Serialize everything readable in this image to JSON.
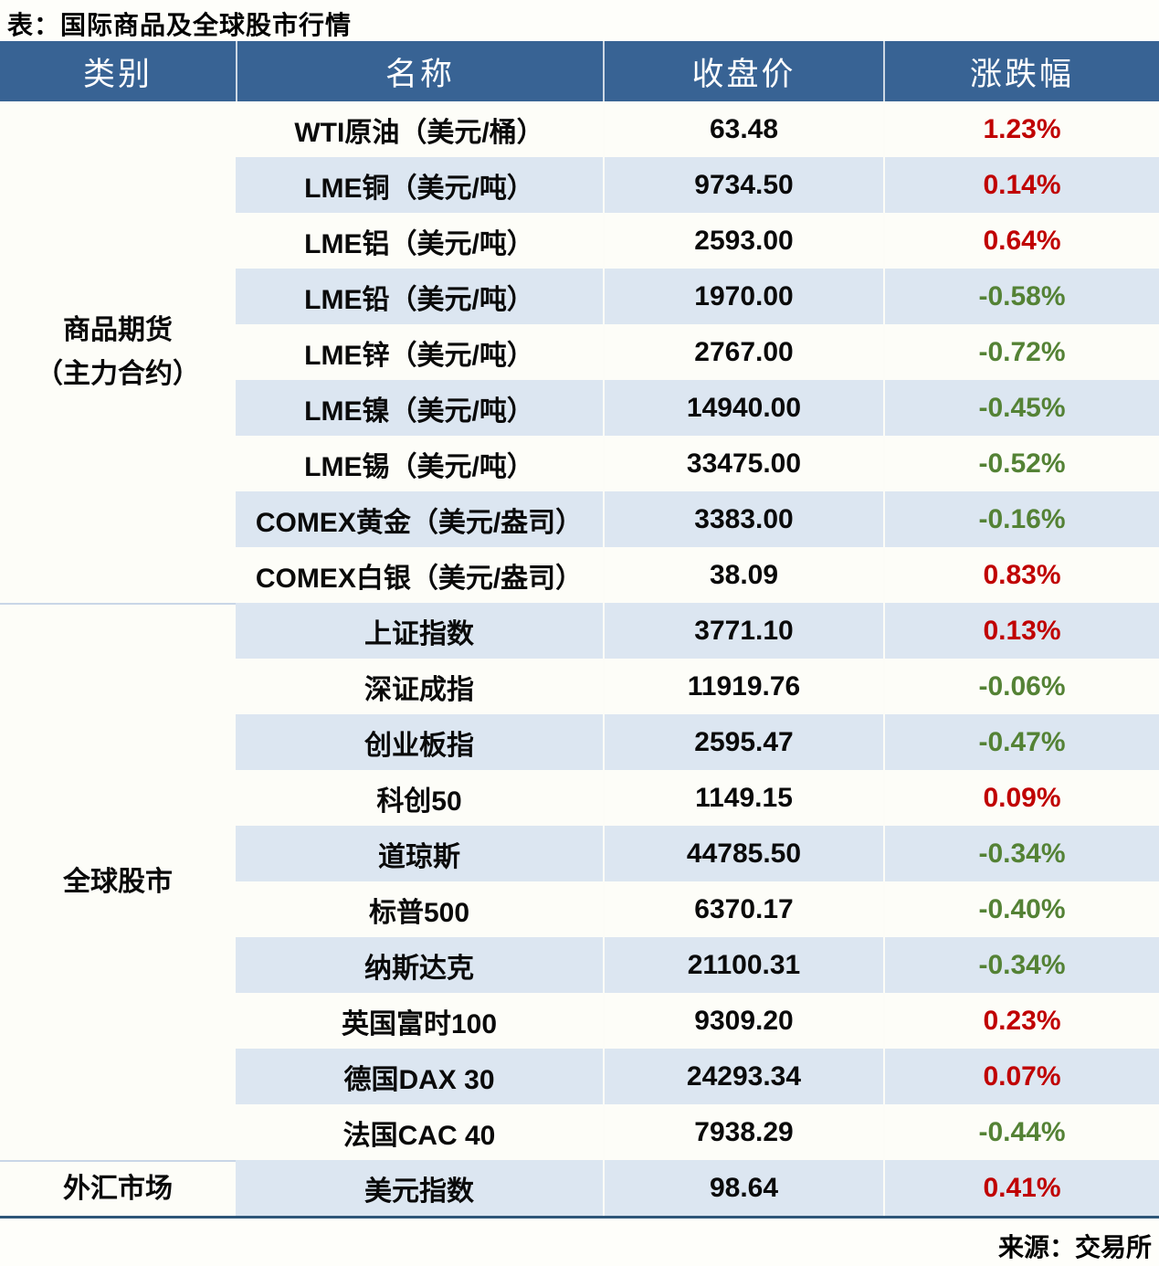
{
  "title": "表：国际商品及全球股市行情",
  "source": "来源：交易所",
  "colors": {
    "header_bg": "#386394",
    "stripe_blue": "#dce6f1",
    "row_white": "#fdfdf8",
    "up_red": "#c00000",
    "down_green": "#548235",
    "bottom_border": "#2e5679"
  },
  "table": {
    "columns": [
      "类别",
      "名称",
      "收盘价",
      "涨跌幅"
    ],
    "categories": [
      {
        "label_line1": "商品期货",
        "label_line2": "（主力合约）",
        "row_count": 9
      },
      {
        "label_line1": "全球股市",
        "label_line2": "",
        "row_count": 10
      },
      {
        "label_line1": "外汇市场",
        "label_line2": "",
        "row_count": 1
      }
    ],
    "rows": [
      {
        "name": "WTI原油（美元/桶）",
        "close": "63.48",
        "change": "1.23%"
      },
      {
        "name": "LME铜（美元/吨）",
        "close": "9734.50",
        "change": "0.14%"
      },
      {
        "name": "LME铝（美元/吨）",
        "close": "2593.00",
        "change": "0.64%"
      },
      {
        "name": "LME铅（美元/吨）",
        "close": "1970.00",
        "change": "-0.58%"
      },
      {
        "name": "LME锌（美元/吨）",
        "close": "2767.00",
        "change": "-0.72%"
      },
      {
        "name": "LME镍（美元/吨）",
        "close": "14940.00",
        "change": "-0.45%"
      },
      {
        "name": "LME锡（美元/吨）",
        "close": "33475.00",
        "change": "-0.52%"
      },
      {
        "name": "COMEX黄金（美元/盎司）",
        "close": "3383.00",
        "change": "-0.16%"
      },
      {
        "name": "COMEX白银（美元/盎司）",
        "close": "38.09",
        "change": "0.83%"
      },
      {
        "name": "上证指数",
        "close": "3771.10",
        "change": "0.13%"
      },
      {
        "name": "深证成指",
        "close": "11919.76",
        "change": "-0.06%"
      },
      {
        "name": "创业板指",
        "close": "2595.47",
        "change": "-0.47%"
      },
      {
        "name": "科创50",
        "close": "1149.15",
        "change": "0.09%"
      },
      {
        "name": "道琼斯",
        "close": "44785.50",
        "change": "-0.34%"
      },
      {
        "name": "标普500",
        "close": "6370.17",
        "change": "-0.40%"
      },
      {
        "name": "纳斯达克",
        "close": "21100.31",
        "change": "-0.34%"
      },
      {
        "name": "英国富时100",
        "close": "9309.20",
        "change": "0.23%"
      },
      {
        "name": "德国DAX 30",
        "close": "24293.34",
        "change": "0.07%"
      },
      {
        "name": "法国CAC 40",
        "close": "7938.29",
        "change": "-0.44%"
      },
      {
        "name": "美元指数",
        "close": "98.64",
        "change": "0.41%"
      }
    ]
  },
  "chart_data": {
    "type": "table",
    "title": "表：国际商品及全球股市行情",
    "columns": [
      "类别",
      "名称",
      "收盘价",
      "涨跌幅"
    ],
    "rows": [
      [
        "商品期货（主力合约）",
        "WTI原油（美元/桶）",
        63.48,
        "1.23%"
      ],
      [
        "商品期货（主力合约）",
        "LME铜（美元/吨）",
        9734.5,
        "0.14%"
      ],
      [
        "商品期货（主力合约）",
        "LME铝（美元/吨）",
        2593.0,
        "0.64%"
      ],
      [
        "商品期货（主力合约）",
        "LME铅（美元/吨）",
        1970.0,
        "-0.58%"
      ],
      [
        "商品期货（主力合约）",
        "LME锌（美元/吨）",
        2767.0,
        "-0.72%"
      ],
      [
        "商品期货（主力合约）",
        "LME镍（美元/吨）",
        14940.0,
        "-0.45%"
      ],
      [
        "商品期货（主力合约）",
        "LME锡（美元/吨）",
        33475.0,
        "-0.52%"
      ],
      [
        "商品期货（主力合约）",
        "COMEX黄金（美元/盎司）",
        3383.0,
        "-0.16%"
      ],
      [
        "商品期货（主力合约）",
        "COMEX白银（美元/盎司）",
        38.09,
        "0.83%"
      ],
      [
        "全球股市",
        "上证指数",
        3771.1,
        "0.13%"
      ],
      [
        "全球股市",
        "深证成指",
        11919.76,
        "-0.06%"
      ],
      [
        "全球股市",
        "创业板指",
        2595.47,
        "-0.47%"
      ],
      [
        "全球股市",
        "科创50",
        1149.15,
        "0.09%"
      ],
      [
        "全球股市",
        "道琼斯",
        44785.5,
        "-0.34%"
      ],
      [
        "全球股市",
        "标普500",
        6370.17,
        "-0.40%"
      ],
      [
        "全球股市",
        "纳斯达克",
        21100.31,
        "-0.34%"
      ],
      [
        "全球股市",
        "英国富时100",
        9309.2,
        "0.23%"
      ],
      [
        "全球股市",
        "德国DAX 30",
        24293.34,
        "0.07%"
      ],
      [
        "全球股市",
        "法国CAC 40",
        7938.29,
        "-0.44%"
      ],
      [
        "外汇市场",
        "美元指数",
        98.64,
        "0.41%"
      ]
    ],
    "notes": "涨跌幅正值为红色(#c00000)，负值为绿色(#548235)；来源：交易所"
  }
}
